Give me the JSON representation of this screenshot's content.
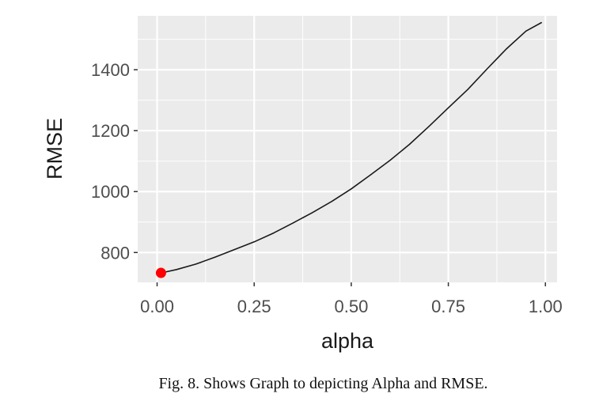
{
  "chart_data": {
    "type": "line",
    "xlabel": "alpha",
    "ylabel": "RMSE",
    "xlim": [
      -0.05,
      1.03
    ],
    "ylim": [
      702,
      1577
    ],
    "x_ticks": [
      0.0,
      0.25,
      0.5,
      0.75,
      1.0
    ],
    "x_tick_labels": [
      "0.00",
      "0.25",
      "0.50",
      "0.75",
      "1.00"
    ],
    "y_ticks": [
      800,
      1000,
      1200,
      1400
    ],
    "y_tick_labels": [
      "800",
      "1000",
      "1200",
      "1400"
    ],
    "grid": true,
    "background": "#ebebeb",
    "line_color": "#1a1a1a",
    "series": [
      {
        "x": [
          0.01,
          0.05,
          0.1,
          0.15,
          0.2,
          0.25,
          0.3,
          0.35,
          0.4,
          0.45,
          0.5,
          0.55,
          0.6,
          0.65,
          0.7,
          0.75,
          0.8,
          0.85,
          0.9,
          0.95,
          0.99
        ],
        "values": [
          733,
          744,
          762,
          785,
          810,
          835,
          864,
          897,
          931,
          968,
          1009,
          1055,
          1103,
          1155,
          1214,
          1275,
          1335,
          1403,
          1469,
          1527,
          1555
        ]
      }
    ],
    "highlight_point": {
      "x": 0.01,
      "y": 733,
      "color": "#ff0000"
    }
  },
  "caption": "Fig. 8.  Shows Graph to depicting Alpha and RMSE."
}
